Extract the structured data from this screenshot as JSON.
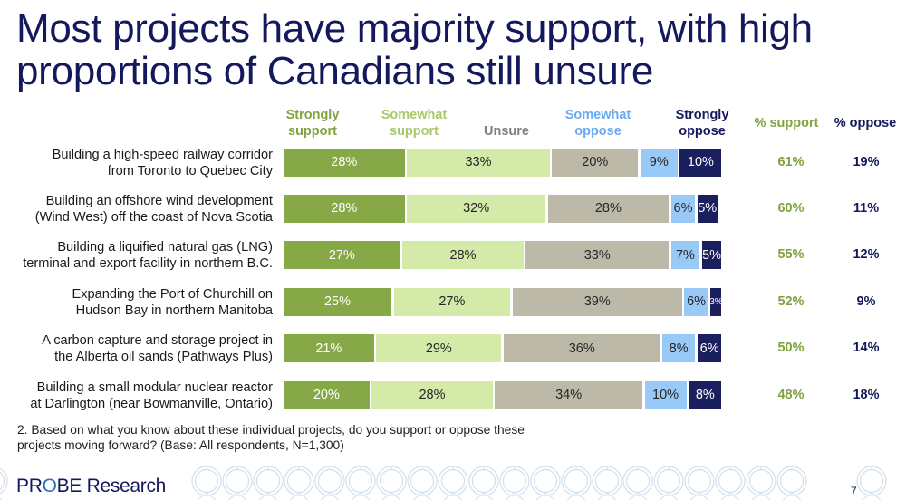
{
  "title": "Most projects have majority support, with high proportions of Canadians still unsure",
  "colors": {
    "title": "#14185c",
    "strongly_support": "#86a847",
    "somewhat_support": "#d3eaa8",
    "unsure": "#bcb9a8",
    "somewhat_oppose": "#99c9f7",
    "strongly_oppose": "#1a1f5e",
    "support_text": "#7fa33f",
    "oppose_text": "#14185c",
    "unsure_text": "#7f7f7f",
    "somewhat_support_text": "#a7c96b",
    "somewhat_oppose_text": "#6aaaf0"
  },
  "chart_data": {
    "type": "bar",
    "orientation": "horizontal-stacked-100",
    "title": "Most projects have majority support, with high proportions of Canadians still unsure",
    "series_headers": [
      {
        "key": "strongly_support",
        "line1": "Strongly",
        "line2": "support"
      },
      {
        "key": "somewhat_support",
        "line1": "Somewhat",
        "line2": "support"
      },
      {
        "key": "unsure",
        "line1": "",
        "line2": "Unsure"
      },
      {
        "key": "somewhat_oppose",
        "line1": "Somewhat",
        "line2": "oppose"
      },
      {
        "key": "strongly_oppose",
        "line1": "Strongly",
        "line2": "oppose"
      }
    ],
    "summary_headers": {
      "support": "% support",
      "oppose": "% oppose"
    },
    "categories": [
      {
        "line1": "Building a high-speed railway corridor",
        "line2": "from Toronto to Quebec City"
      },
      {
        "line1": "Building an offshore wind development",
        "line2": "(Wind West) off the coast of Nova Scotia"
      },
      {
        "line1": "Building a liquified natural gas (LNG)",
        "line2": "terminal and export facility in northern B.C."
      },
      {
        "line1": "Expanding the Port of Churchill on",
        "line2": "Hudson Bay in northern Manitoba"
      },
      {
        "line1": "A carbon capture and storage project in",
        "line2": "the Alberta oil sands (Pathways Plus)"
      },
      {
        "line1": "Building a small modular nuclear reactor",
        "line2": "at Darlington (near Bowmanville, Ontario)"
      }
    ],
    "series": [
      {
        "name": "Strongly support",
        "key": "strongly_support",
        "values": [
          28,
          28,
          27,
          25,
          21,
          20
        ]
      },
      {
        "name": "Somewhat support",
        "key": "somewhat_support",
        "values": [
          33,
          32,
          28,
          27,
          29,
          28
        ]
      },
      {
        "name": "Unsure",
        "key": "unsure",
        "values": [
          20,
          28,
          33,
          39,
          36,
          34
        ]
      },
      {
        "name": "Somewhat oppose",
        "key": "somewhat_oppose",
        "values": [
          9,
          6,
          7,
          6,
          8,
          10
        ]
      },
      {
        "name": "Strongly oppose",
        "key": "strongly_oppose",
        "values": [
          10,
          5,
          5,
          3,
          6,
          8
        ]
      }
    ],
    "pct_support": [
      61,
      60,
      55,
      52,
      50,
      48
    ],
    "pct_oppose": [
      19,
      11,
      12,
      9,
      14,
      18
    ],
    "value_suffix": "%",
    "xlim": [
      0,
      100
    ],
    "grid": false,
    "legend": "top"
  },
  "footnote": {
    "line1": "2. Based on what you know about these individual projects, do you support or oppose these",
    "line2": "projects moving forward? (Base: All respondents, N=1,300)"
  },
  "logo": {
    "part1": "PR",
    "part2": "O",
    "part3": "BE Research"
  },
  "page_number": "7"
}
